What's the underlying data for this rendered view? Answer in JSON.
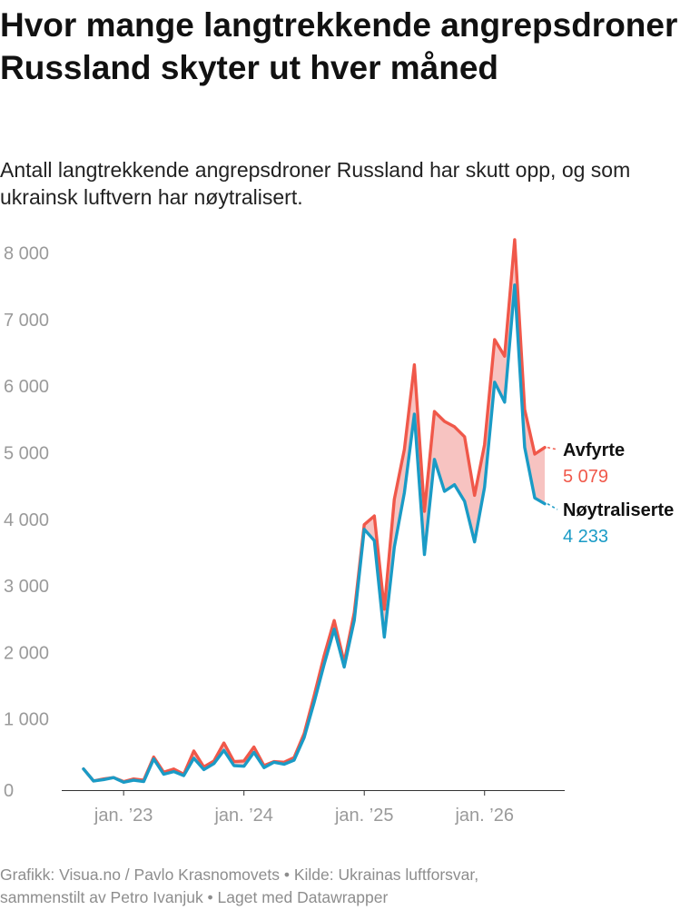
{
  "title": "Hvor mange langtrekkende angrepsdroner Russland skyter ut hver måned",
  "subtitle": "Antall langtrekkende angrepsdroner Russland har skutt opp, og som ukrainsk luftvern har nøytralisert.",
  "footer": {
    "line1": "Grafikk: Visua.no / Pavlo Krasnomovets • Kilde: Ukrainas luftforsvar,",
    "line2": "sammenstilt av Petro Ivanjuk • Laget med Datawrapper"
  },
  "colors": {
    "launched": "#f0584a",
    "neutralized": "#1a9bc6",
    "gap_fill": "#f7c3c1",
    "axis_text": "#9a9a9a",
    "grid": "#dddddd"
  },
  "chart_data": {
    "type": "line",
    "title": "Hvor mange langtrekkende angrepsdroner Russland skyter ut hver måned",
    "x": [
      "2022-09",
      "2022-10",
      "2022-11",
      "2022-12",
      "2023-01",
      "2023-02",
      "2023-03",
      "2023-04",
      "2023-05",
      "2023-06",
      "2023-07",
      "2023-08",
      "2023-09",
      "2023-10",
      "2023-11",
      "2023-12",
      "2024-01",
      "2024-02",
      "2024-03",
      "2024-04",
      "2024-05",
      "2024-06",
      "2024-07",
      "2024-08",
      "2024-09",
      "2024-10",
      "2024-11",
      "2024-12",
      "2025-01",
      "2025-02",
      "2025-03",
      "2025-04",
      "2025-05",
      "2025-06",
      "2025-07",
      "2025-08",
      "2025-09",
      "2025-10",
      "2025-11",
      "2025-12",
      "2026-01",
      "2026-02",
      "2026-03",
      "2026-04",
      "2026-05",
      "2026-06",
      "2026-07"
    ],
    "x_tick_labels": [
      "jan. ’23",
      "jan. ’24",
      "jan. ’25",
      "jan. ’26"
    ],
    "x_tick_values": [
      "2023-01",
      "2024-01",
      "2025-01",
      "2026-01"
    ],
    "y_ticks": [
      "0",
      "1 000",
      "2 000",
      "3 000",
      "4 000",
      "5 000",
      "6 000",
      "7 000",
      "8 000"
    ],
    "y_tick_values": [
      0,
      1000,
      2000,
      3000,
      4000,
      5000,
      6000,
      7000,
      8000
    ],
    "ylim": [
      0,
      8200
    ],
    "grid": false,
    "series": [
      {
        "name": "Avfyrte",
        "end_label": "5 079",
        "color": "#f0584a",
        "values": [
          250,
          70,
          100,
          120,
          60,
          100,
          80,
          430,
          200,
          250,
          170,
          520,
          280,
          370,
          640,
          360,
          370,
          580,
          300,
          360,
          350,
          420,
          780,
          1350,
          1950,
          2480,
          1850,
          2600,
          3920,
          4050,
          2650,
          4300,
          5050,
          6320,
          4120,
          5620,
          5470,
          5390,
          5240,
          4360,
          5120,
          6700,
          6450,
          8200,
          5650,
          4980,
          5079
        ]
      },
      {
        "name": "Nøytraliserte",
        "end_label": "4 233",
        "color": "#1a9bc6",
        "values": [
          250,
          70,
          90,
          120,
          50,
          80,
          60,
          400,
          170,
          210,
          150,
          410,
          240,
          330,
          530,
          300,
          290,
          500,
          270,
          350,
          320,
          380,
          720,
          1250,
          1820,
          2350,
          1780,
          2480,
          3850,
          3680,
          2230,
          3580,
          4400,
          5580,
          3470,
          4900,
          4420,
          4520,
          4270,
          3660,
          4480,
          6060,
          5760,
          7520,
          5080,
          4320,
          4233
        ]
      }
    ],
    "legend": "right end labels"
  }
}
